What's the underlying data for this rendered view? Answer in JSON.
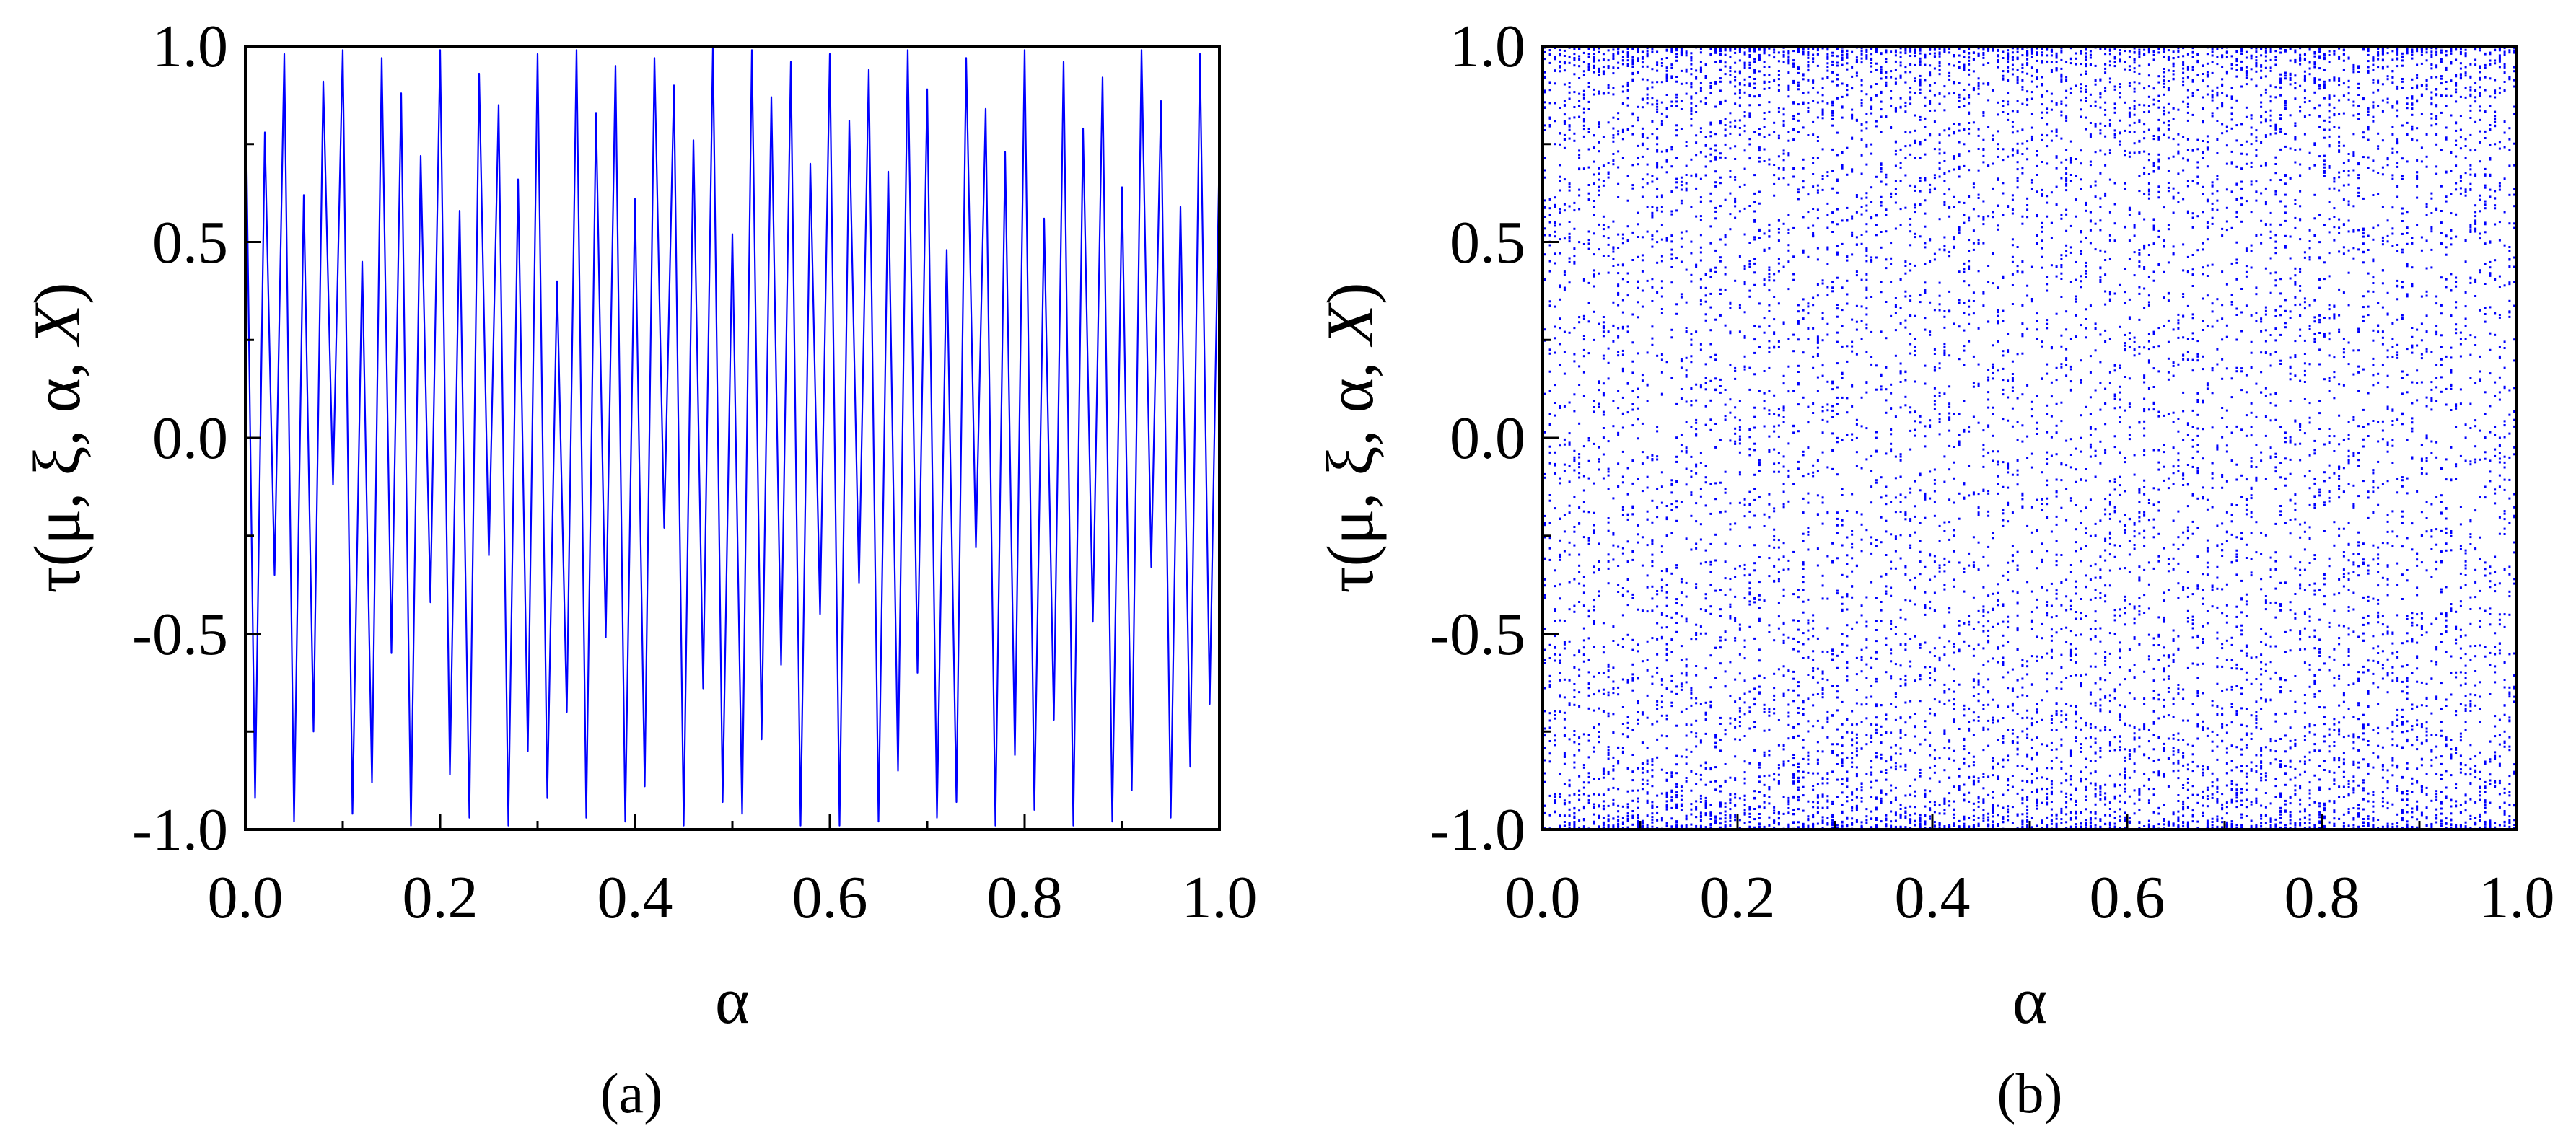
{
  "chart_data": [
    {
      "type": "line",
      "panel_label": "(a)",
      "xlabel": "α",
      "ylabel_parts": [
        "τ(μ, ξ, α, ",
        "X",
        ")"
      ],
      "xlim": [
        0.0,
        1.0
      ],
      "ylim": [
        -1.0,
        1.0
      ],
      "x_tick_labels": [
        "0.0",
        "0.2",
        "0.4",
        "0.6",
        "0.8",
        "1.0"
      ],
      "y_tick_labels": [
        "1.0",
        "0.5",
        "0.0",
        "-0.5",
        "-1.0"
      ],
      "grid": false,
      "color": "#0000ff",
      "series": [
        {
          "x": [
            0.0,
            0.01,
            0.02,
            0.03,
            0.04,
            0.05,
            0.06,
            0.07,
            0.08,
            0.09,
            0.1,
            0.11,
            0.12,
            0.13,
            0.14,
            0.15,
            0.16,
            0.17,
            0.18,
            0.19,
            0.2,
            0.21,
            0.22,
            0.23,
            0.24,
            0.25,
            0.26,
            0.27,
            0.28,
            0.29,
            0.3,
            0.31,
            0.32,
            0.33,
            0.34,
            0.35,
            0.36,
            0.37,
            0.38,
            0.39,
            0.4,
            0.41,
            0.42,
            0.43,
            0.44,
            0.45,
            0.46,
            0.47,
            0.48,
            0.49,
            0.5,
            0.51,
            0.52,
            0.53,
            0.54,
            0.55,
            0.56,
            0.57,
            0.58,
            0.59,
            0.6,
            0.61,
            0.62,
            0.63,
            0.64,
            0.65,
            0.66,
            0.67,
            0.68,
            0.69,
            0.7,
            0.71,
            0.72,
            0.73,
            0.74,
            0.75,
            0.76,
            0.77,
            0.78,
            0.79,
            0.8,
            0.81,
            0.82,
            0.83,
            0.84,
            0.85,
            0.86,
            0.87,
            0.88,
            0.89,
            0.9,
            0.91,
            0.92,
            0.93,
            0.94,
            0.95,
            0.96,
            0.97,
            0.98,
            0.99,
            1.0
          ],
          "y": [
            0.95,
            -0.92,
            0.78,
            -0.35,
            0.98,
            -0.98,
            0.62,
            -0.75,
            0.91,
            -0.12,
            0.99,
            -0.96,
            0.45,
            -0.88,
            0.97,
            -0.55,
            0.88,
            -0.99,
            0.72,
            -0.42,
            0.99,
            -0.86,
            0.58,
            -0.97,
            0.93,
            -0.3,
            0.85,
            -0.99,
            0.66,
            -0.8,
            0.98,
            -0.92,
            0.4,
            -0.7,
            0.99,
            -0.97,
            0.83,
            -0.51,
            0.95,
            -0.98,
            0.61,
            -0.89,
            0.97,
            -0.23,
            0.9,
            -0.99,
            0.76,
            -0.64,
            1.0,
            -0.93,
            0.52,
            -0.96,
            0.99,
            -0.77,
            0.87,
            -0.58,
            0.96,
            -0.99,
            0.7,
            -0.45,
            0.98,
            -0.99,
            0.81,
            -0.37,
            0.94,
            -0.98,
            0.68,
            -0.85,
            0.99,
            -0.6,
            0.89,
            -0.97,
            0.48,
            -0.93,
            0.97,
            -0.28,
            0.84,
            -0.99,
            0.73,
            -0.81,
            0.99,
            -0.95,
            0.56,
            -0.72,
            0.96,
            -0.99,
            0.79,
            -0.47,
            0.92,
            -0.98,
            0.64,
            -0.9,
            0.99,
            -0.33,
            0.86,
            -0.97,
            0.59,
            -0.84,
            0.98,
            -0.68,
            0.74
          ]
        }
      ]
    },
    {
      "type": "scatter",
      "panel_label": "(b)",
      "xlabel": "α",
      "ylabel_parts": [
        "τ(μ, ξ, α, ",
        "X",
        ")"
      ],
      "xlim": [
        0.0,
        1.0
      ],
      "ylim": [
        -1.0,
        1.0
      ],
      "x_tick_labels": [
        "0.0",
        "0.2",
        "0.4",
        "0.6",
        "0.8",
        "1.0"
      ],
      "y_tick_labels": [
        "1.0",
        "0.5",
        "0.0",
        "-0.5",
        "-1.0"
      ],
      "grid": false,
      "color": "#0000ff",
      "x_columns": 200,
      "points_per_column": 60,
      "y_range_filled": [
        -1.0,
        1.0
      ]
    }
  ]
}
